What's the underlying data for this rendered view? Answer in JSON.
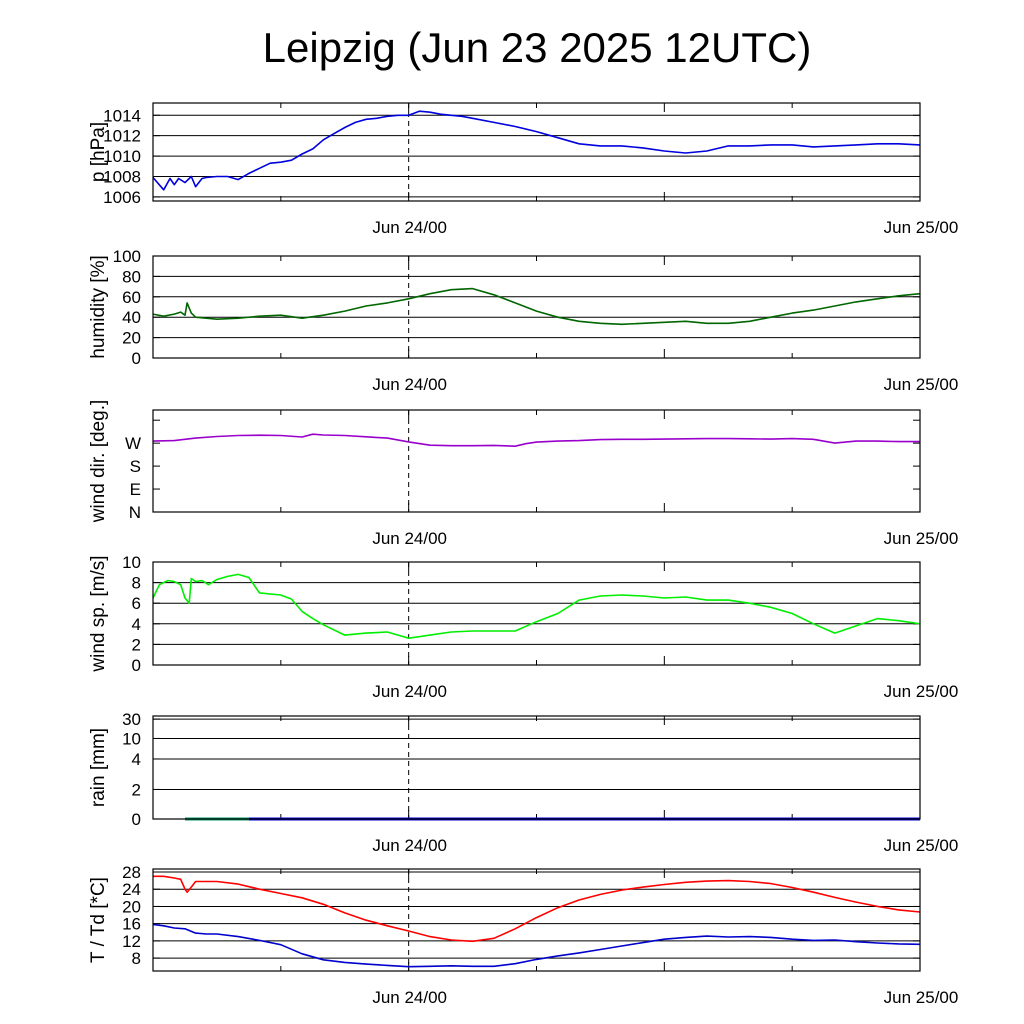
{
  "title": "Leipzig (Jun 23 2025 12UTC)",
  "x_tick_labels": [
    "Jun 24/00",
    "Jun 25/00"
  ],
  "chart_data": [
    {
      "type": "line",
      "ylabel": "p [hPa]",
      "ylim": [
        1005.6,
        1015.2
      ],
      "yticks": [
        1006,
        1008,
        1010,
        1012,
        1014
      ],
      "yticklabels": [
        "1006",
        "1008",
        "1010",
        "1012",
        "1014"
      ],
      "grid": true,
      "series": [
        {
          "color": "#0000dd",
          "x": [
            0,
            0.5,
            0.8,
            1,
            1.2,
            1.5,
            1.8,
            2,
            2.3,
            2.5,
            3,
            3.5,
            4,
            4.5,
            5,
            5.5,
            6,
            6.5,
            7,
            7.5,
            8,
            8.5,
            9,
            9.5,
            10,
            10.5,
            11,
            11.5,
            12,
            12.5,
            13,
            13.5,
            14,
            14.5,
            15,
            16,
            17,
            18,
            19,
            20,
            21,
            22,
            23,
            24,
            25,
            26,
            27,
            28,
            29,
            30,
            31,
            32,
            33,
            34,
            35,
            36
          ],
          "y": [
            1007.9,
            1006.7,
            1007.8,
            1007.2,
            1007.8,
            1007.4,
            1008.0,
            1007.0,
            1007.8,
            1007.9,
            1008.0,
            1008.0,
            1007.7,
            1008.3,
            1008.8,
            1009.3,
            1009.4,
            1009.6,
            1010.2,
            1010.7,
            1011.6,
            1012.2,
            1012.8,
            1013.3,
            1013.6,
            1013.7,
            1013.9,
            1014.0,
            1014.0,
            1014.4,
            1014.3,
            1014.1,
            1014.0,
            1013.9,
            1013.7,
            1013.3,
            1012.9,
            1012.4,
            1011.8,
            1011.2,
            1011.0,
            1011.0,
            1010.8,
            1010.5,
            1010.3,
            1010.5,
            1011.0,
            1011.0,
            1011.1,
            1011.1,
            1010.9,
            1011.0,
            1011.1,
            1011.2,
            1011.2,
            1011.1
          ]
        }
      ]
    },
    {
      "type": "line",
      "ylabel": "humidity [%]",
      "ylim": [
        0,
        100
      ],
      "yticks": [
        0,
        20,
        40,
        60,
        80,
        100
      ],
      "yticklabels": [
        "0",
        "20",
        "40",
        "60",
        "80",
        "100"
      ],
      "grid": true,
      "series": [
        {
          "color": "#006600",
          "x": [
            0,
            0.5,
            1,
            1.3,
            1.5,
            1.6,
            1.8,
            2,
            2.5,
            3,
            4,
            5,
            6,
            7,
            8,
            9,
            10,
            11,
            12,
            13,
            14,
            15,
            16,
            17,
            18,
            19,
            20,
            21,
            22,
            23,
            24,
            25,
            26,
            27,
            28,
            29,
            30,
            31,
            32,
            33,
            34,
            35,
            36
          ],
          "y": [
            43,
            41,
            43,
            45,
            42,
            54,
            44,
            40,
            39,
            38,
            39,
            41,
            42,
            39,
            42,
            46,
            51,
            54,
            58,
            63,
            67,
            68,
            62,
            54,
            46,
            40,
            36,
            34,
            33,
            34,
            35,
            36,
            34,
            34,
            36,
            40,
            44,
            47,
            51,
            55,
            58,
            61,
            63
          ]
        }
      ]
    },
    {
      "type": "line",
      "ylabel": "wind dir. [deg.]",
      "ylim": [
        0,
        400
      ],
      "yticks": [
        0,
        90,
        180,
        270,
        360
      ],
      "yticklabels": [
        "N",
        "E",
        "S",
        "W",
        ""
      ],
      "grid": false,
      "series": [
        {
          "color": "#9900cc",
          "x": [
            0,
            1,
            2,
            3,
            4,
            5,
            6,
            7,
            7.5,
            8,
            9,
            10,
            11,
            12,
            13,
            14,
            15,
            16,
            17,
            17.5,
            18,
            19,
            20,
            21,
            22,
            23,
            24,
            25,
            26,
            27,
            28,
            29,
            30,
            31,
            32,
            33,
            34,
            35,
            36
          ],
          "y": [
            278,
            280,
            290,
            296,
            300,
            301,
            300,
            294,
            305,
            302,
            300,
            295,
            290,
            275,
            262,
            260,
            260,
            261,
            258,
            268,
            274,
            278,
            280,
            284,
            285,
            285,
            286,
            287,
            288,
            288,
            287,
            286,
            288,
            285,
            270,
            278,
            278,
            276,
            276
          ]
        }
      ]
    },
    {
      "type": "line",
      "ylabel": "wind sp. [m/s]",
      "ylim": [
        0,
        10
      ],
      "yticks": [
        0,
        2,
        4,
        6,
        8,
        10
      ],
      "yticklabels": [
        "0",
        "2",
        "4",
        "6",
        "8",
        "10"
      ],
      "grid": true,
      "series": [
        {
          "color": "#00ee00",
          "x": [
            0,
            0.3,
            0.7,
            1,
            1.3,
            1.5,
            1.7,
            1.8,
            2,
            2.3,
            2.6,
            3,
            3.5,
            4,
            4.5,
            5,
            6,
            6.5,
            7,
            7.5,
            8,
            9,
            10,
            11,
            12,
            13,
            14,
            15,
            16,
            17,
            18,
            19,
            20,
            21,
            22,
            23,
            24,
            25,
            26,
            27,
            28,
            29,
            30,
            31,
            32,
            33,
            34,
            35,
            36
          ],
          "y": [
            6.5,
            7.8,
            8.2,
            8.1,
            7.8,
            6.5,
            6.0,
            8.4,
            8.1,
            8.2,
            7.8,
            8.3,
            8.6,
            8.8,
            8.5,
            7.0,
            6.8,
            6.4,
            5.2,
            4.5,
            3.9,
            2.9,
            3.1,
            3.2,
            2.6,
            2.9,
            3.2,
            3.3,
            3.3,
            3.3,
            4.2,
            5.0,
            6.3,
            6.7,
            6.8,
            6.7,
            6.5,
            6.6,
            6.3,
            6.3,
            6.0,
            5.6,
            5.0,
            4.0,
            3.1,
            3.8,
            4.5,
            4.3,
            4.0
          ]
        }
      ]
    },
    {
      "type": "line",
      "ylabel": "rain [mm]",
      "ylim": [
        0,
        32
      ],
      "yticks": [
        0,
        2,
        4,
        10,
        30
      ],
      "yticklabels": [
        "0",
        "2",
        "4",
        "10",
        "30"
      ],
      "scale": "nonlinear",
      "grid": true,
      "series": [
        {
          "color": "#009966",
          "x": [
            1.5,
            4.5
          ],
          "y": [
            0,
            0
          ]
        },
        {
          "color": "#0000cc",
          "x": [
            4.5,
            36
          ],
          "y": [
            0,
            0
          ]
        }
      ]
    },
    {
      "type": "line",
      "ylabel": "T / Td [*C]",
      "ylim": [
        5,
        28.7
      ],
      "yticks": [
        8,
        12,
        16,
        20,
        24,
        28
      ],
      "yticklabels": [
        "8",
        "12",
        "16",
        "20",
        "24",
        "28"
      ],
      "grid": true,
      "series": [
        {
          "color": "#ff0000",
          "x": [
            0,
            0.5,
            1,
            1.3,
            1.5,
            1.6,
            1.8,
            2,
            2.5,
            3,
            4,
            5,
            6,
            7,
            8,
            9,
            10,
            11,
            12,
            13,
            14,
            15,
            16,
            17,
            18,
            19,
            20,
            21,
            22,
            23,
            24,
            25,
            26,
            27,
            28,
            29,
            30,
            31,
            32,
            33,
            34,
            35,
            36
          ],
          "y": [
            27.0,
            27.0,
            26.6,
            26.3,
            24.0,
            23.3,
            24.5,
            25.8,
            25.8,
            25.8,
            25.2,
            24.0,
            23.0,
            22.0,
            20.5,
            18.5,
            16.8,
            15.5,
            14.3,
            13.0,
            12.2,
            11.9,
            12.6,
            14.8,
            17.4,
            19.7,
            21.5,
            22.8,
            23.8,
            24.5,
            25.1,
            25.6,
            25.9,
            26.0,
            25.8,
            25.3,
            24.4,
            23.3,
            22.1,
            21.0,
            20.0,
            19.2,
            18.7
          ]
        }
      ]
    },
    {
      "type": "line",
      "series": [
        {
          "color": "#0000cc",
          "x": [
            0,
            0.5,
            1,
            1.5,
            2,
            2.5,
            3,
            4,
            5,
            6,
            7,
            8,
            9,
            10,
            11,
            12,
            13,
            14,
            15,
            16,
            17,
            18,
            19,
            20,
            21,
            22,
            23,
            24,
            25,
            26,
            27,
            28,
            29,
            30,
            31,
            32,
            33,
            34,
            35,
            36
          ],
          "y": [
            15.8,
            15.5,
            15.0,
            14.8,
            13.8,
            13.6,
            13.6,
            13.0,
            12.1,
            11.1,
            9.0,
            7.6,
            7.0,
            6.6,
            6.3,
            6.0,
            6.1,
            6.2,
            6.1,
            6.1,
            6.7,
            7.7,
            8.5,
            9.2,
            10.0,
            10.8,
            11.6,
            12.4,
            12.8,
            13.1,
            12.9,
            13.0,
            12.8,
            12.4,
            12.1,
            12.2,
            11.8,
            11.5,
            11.3,
            11.2
          ]
        }
      ]
    }
  ]
}
